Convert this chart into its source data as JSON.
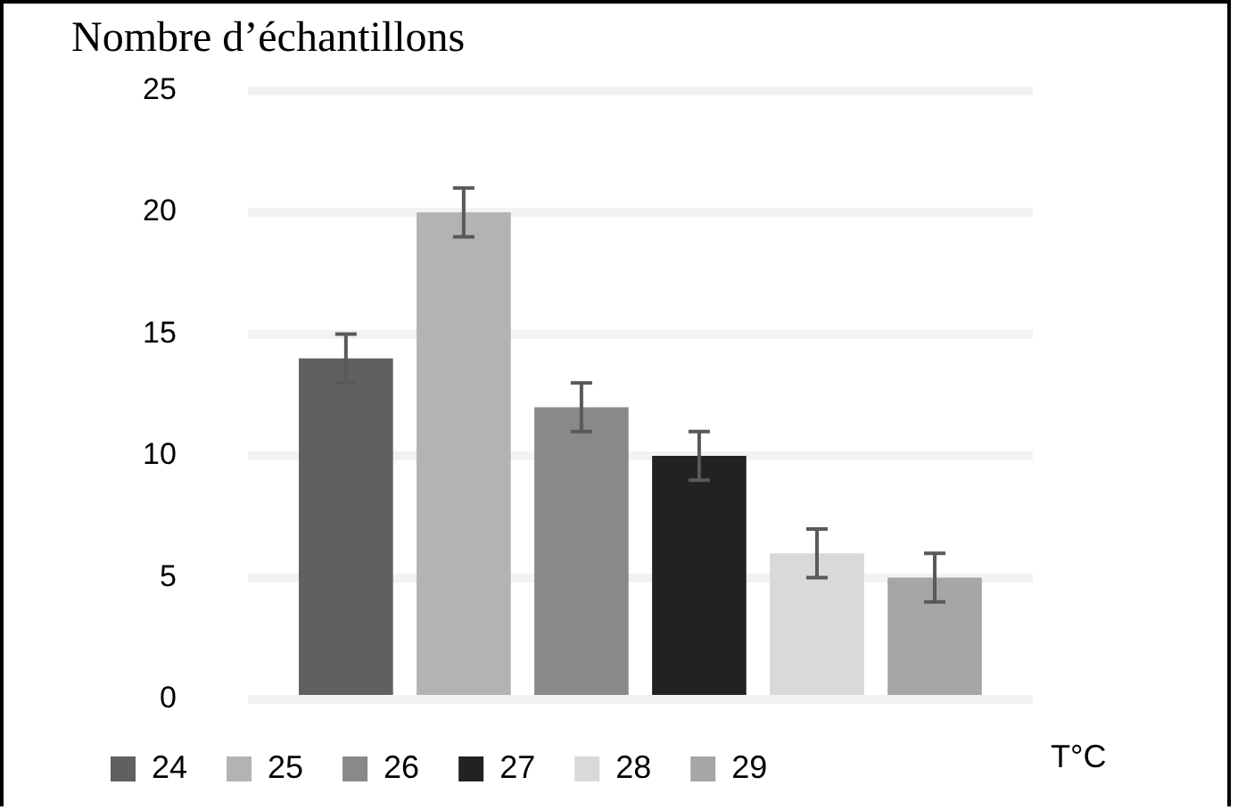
{
  "chart_data": {
    "type": "bar",
    "title": "Nombre d’échantillons",
    "xlabel": "T°C",
    "categories": [
      null
    ],
    "series": [
      {
        "name": "24",
        "color": "#606060",
        "values": [
          14
        ],
        "errors": [
          1
        ]
      },
      {
        "name": "25",
        "color": "#b3b3b3",
        "values": [
          20
        ],
        "errors": [
          1
        ]
      },
      {
        "name": "26",
        "color": "#898989",
        "values": [
          12
        ],
        "errors": [
          1
        ]
      },
      {
        "name": "27",
        "color": "#222222",
        "values": [
          10
        ],
        "errors": [
          1
        ]
      },
      {
        "name": "28",
        "color": "#d9d9d9",
        "values": [
          6
        ],
        "errors": [
          1
        ]
      },
      {
        "name": "29",
        "color": "#a6a6a6",
        "values": [
          5
        ],
        "errors": [
          1
        ]
      }
    ],
    "ylim": [
      0,
      25
    ],
    "yticks": [
      0,
      5,
      10,
      15,
      20,
      25
    ],
    "grid": "y",
    "legend": "bottom"
  }
}
